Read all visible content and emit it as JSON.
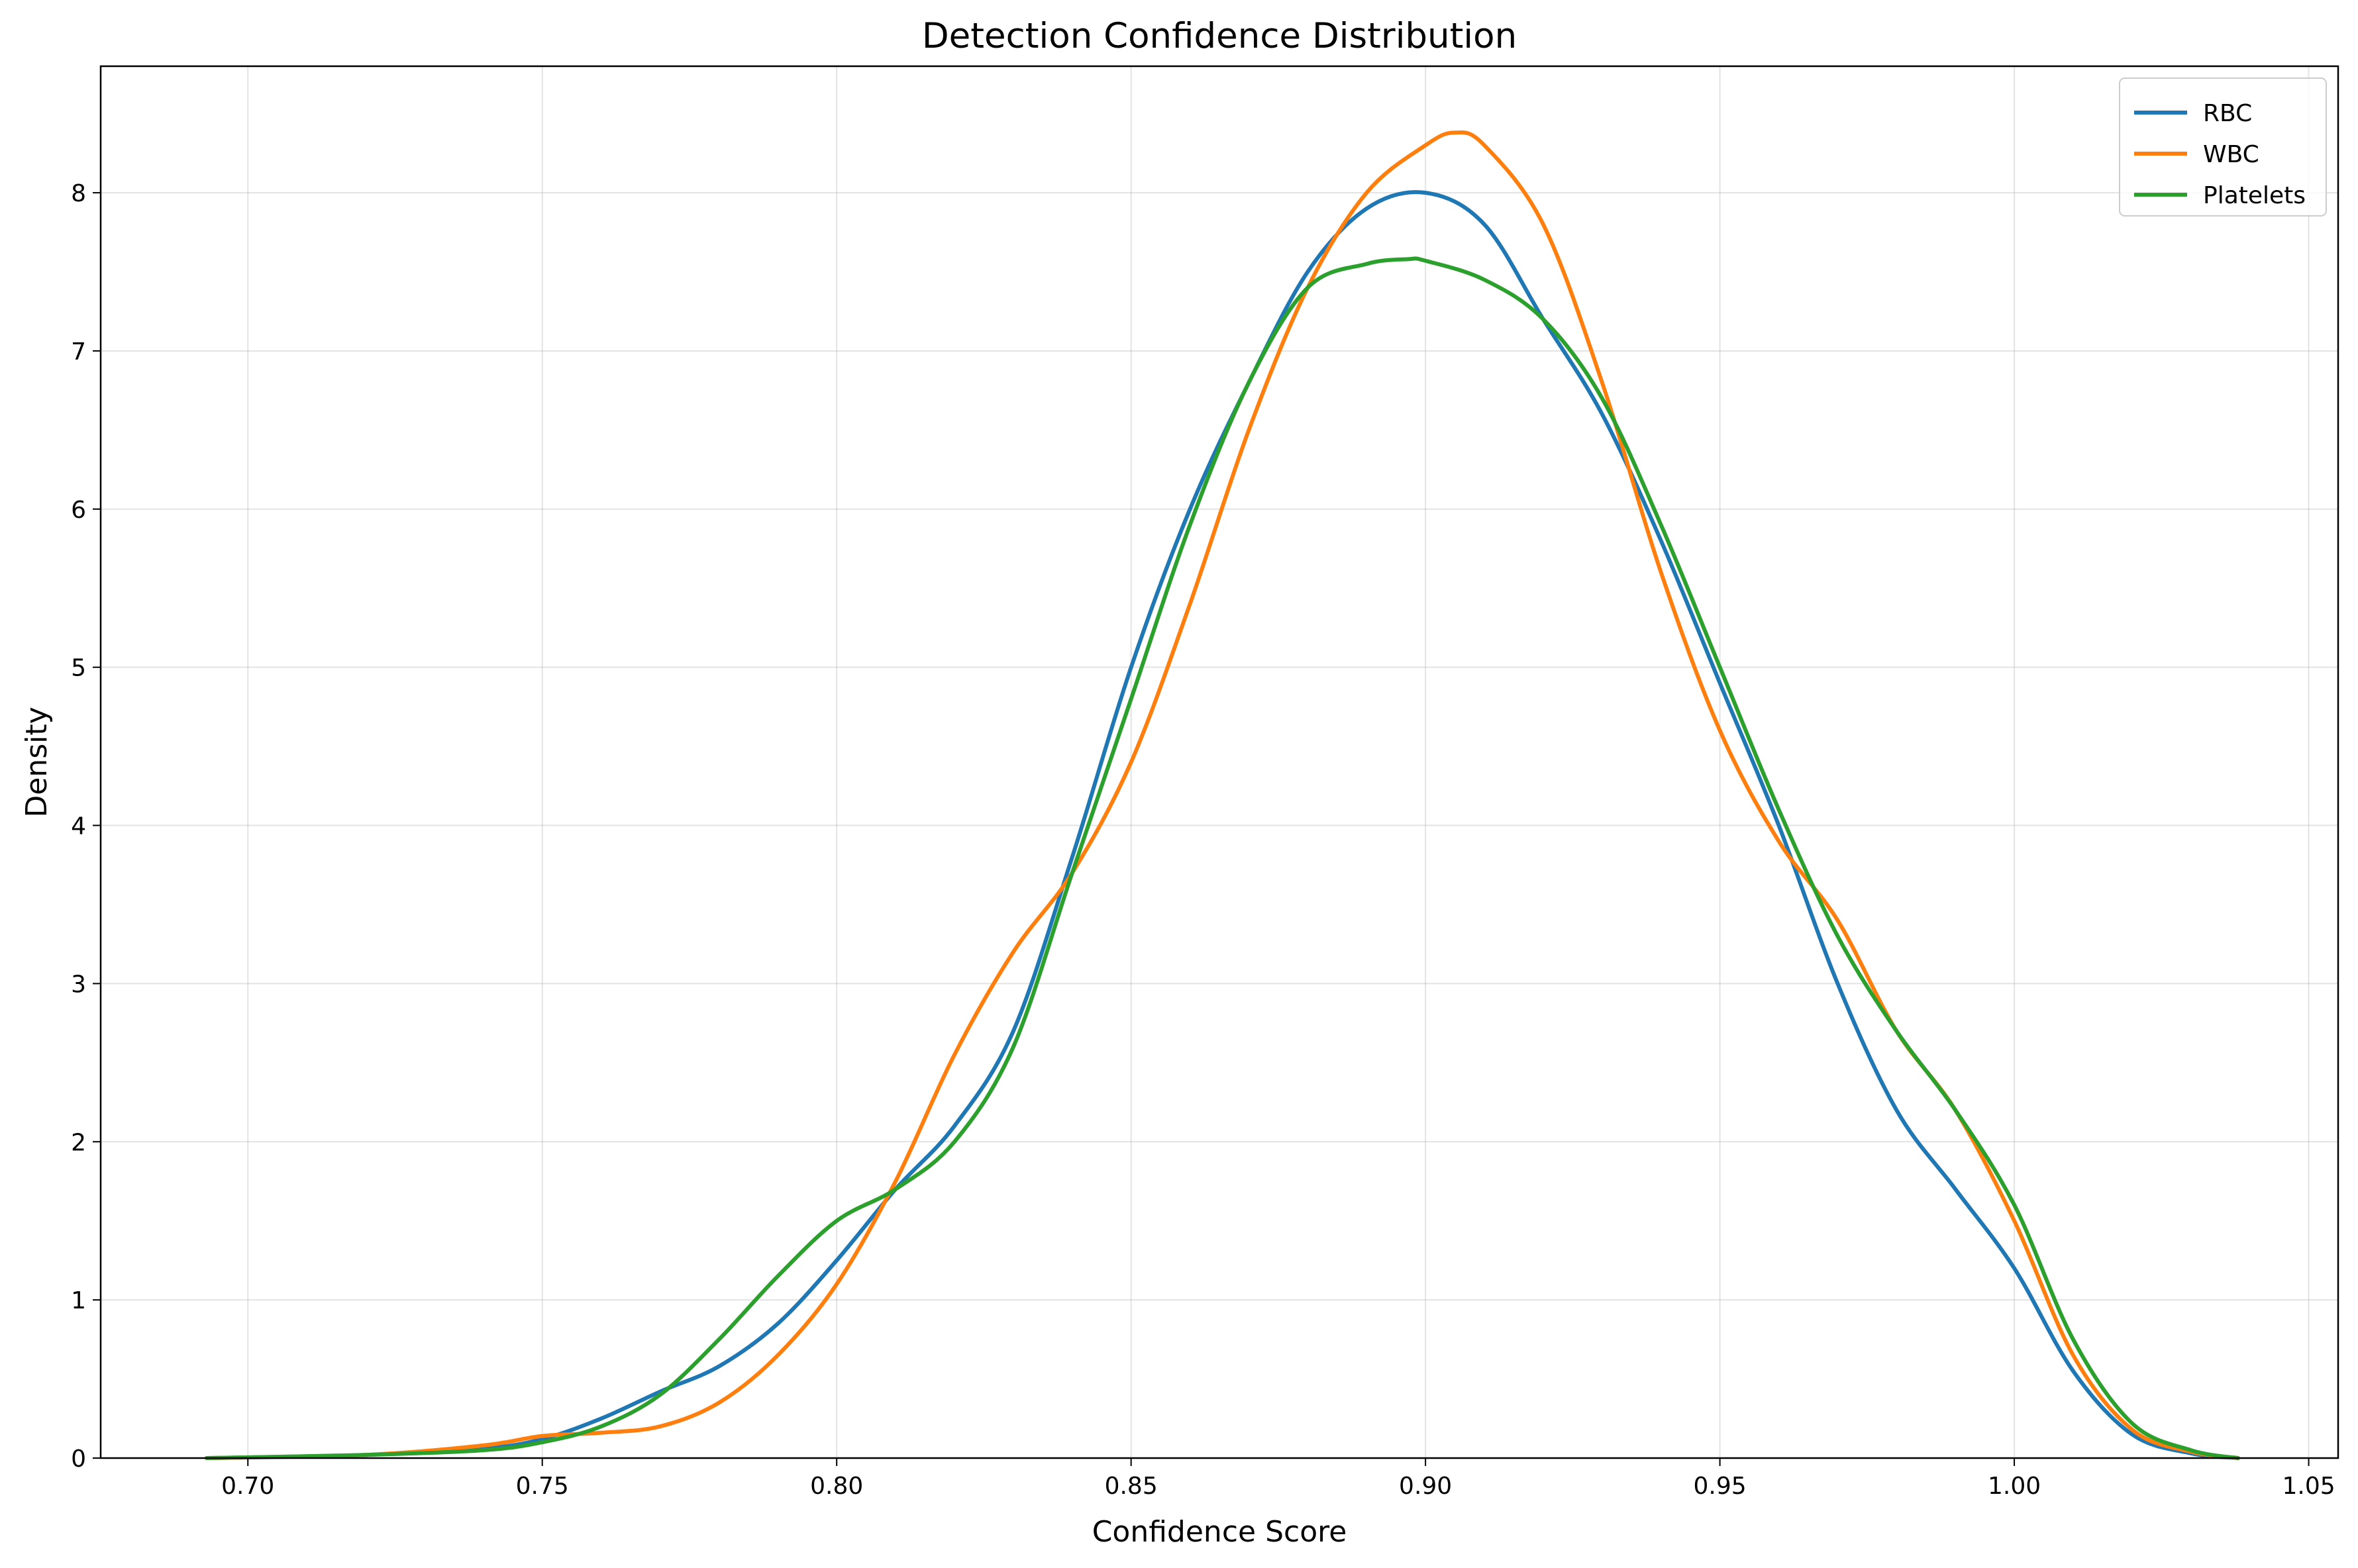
{
  "chart_data": {
    "type": "line",
    "title": "Detection Confidence Distribution",
    "xlabel": "Confidence Score",
    "ylabel": "Density",
    "xlim": [
      0.675,
      1.055
    ],
    "ylim": [
      0,
      8.8
    ],
    "xticks": [
      0.7,
      0.75,
      0.8,
      0.85,
      0.9,
      0.95,
      1.0,
      1.05
    ],
    "xtick_labels": [
      "0.70",
      "0.75",
      "0.80",
      "0.85",
      "0.90",
      "0.95",
      "1.00",
      "1.05"
    ],
    "yticks": [
      0,
      1,
      2,
      3,
      4,
      5,
      6,
      7,
      8
    ],
    "ytick_labels": [
      "0",
      "1",
      "2",
      "3",
      "4",
      "5",
      "6",
      "7",
      "8"
    ],
    "grid": true,
    "legend_position": "top-right",
    "series": [
      {
        "name": "RBC",
        "color": "#1f77b4",
        "points": [
          [
            0.693,
            0.0
          ],
          [
            0.72,
            0.02
          ],
          [
            0.74,
            0.06
          ],
          [
            0.75,
            0.12
          ],
          [
            0.76,
            0.25
          ],
          [
            0.77,
            0.42
          ],
          [
            0.78,
            0.58
          ],
          [
            0.79,
            0.85
          ],
          [
            0.8,
            1.25
          ],
          [
            0.81,
            1.7
          ],
          [
            0.82,
            2.1
          ],
          [
            0.83,
            2.7
          ],
          [
            0.84,
            3.8
          ],
          [
            0.85,
            5.0
          ],
          [
            0.86,
            6.0
          ],
          [
            0.87,
            6.8
          ],
          [
            0.88,
            7.5
          ],
          [
            0.89,
            7.9
          ],
          [
            0.9,
            8.0
          ],
          [
            0.91,
            7.8
          ],
          [
            0.92,
            7.2
          ],
          [
            0.93,
            6.6
          ],
          [
            0.94,
            5.8
          ],
          [
            0.95,
            4.9
          ],
          [
            0.96,
            4.0
          ],
          [
            0.97,
            3.0
          ],
          [
            0.98,
            2.2
          ],
          [
            0.99,
            1.7
          ],
          [
            1.0,
            1.2
          ],
          [
            1.01,
            0.55
          ],
          [
            1.02,
            0.15
          ],
          [
            1.03,
            0.03
          ],
          [
            1.038,
            0.0
          ]
        ]
      },
      {
        "name": "WBC",
        "color": "#ff7f0e",
        "points": [
          [
            0.693,
            0.0
          ],
          [
            0.72,
            0.02
          ],
          [
            0.74,
            0.08
          ],
          [
            0.75,
            0.14
          ],
          [
            0.76,
            0.16
          ],
          [
            0.77,
            0.2
          ],
          [
            0.78,
            0.35
          ],
          [
            0.79,
            0.65
          ],
          [
            0.8,
            1.1
          ],
          [
            0.81,
            1.75
          ],
          [
            0.82,
            2.55
          ],
          [
            0.83,
            3.2
          ],
          [
            0.84,
            3.7
          ],
          [
            0.85,
            4.4
          ],
          [
            0.86,
            5.4
          ],
          [
            0.87,
            6.5
          ],
          [
            0.88,
            7.4
          ],
          [
            0.89,
            8.0
          ],
          [
            0.9,
            8.3
          ],
          [
            0.905,
            8.38
          ],
          [
            0.91,
            8.3
          ],
          [
            0.92,
            7.8
          ],
          [
            0.93,
            6.8
          ],
          [
            0.94,
            5.6
          ],
          [
            0.95,
            4.6
          ],
          [
            0.96,
            3.9
          ],
          [
            0.97,
            3.4
          ],
          [
            0.98,
            2.7
          ],
          [
            0.99,
            2.2
          ],
          [
            1.0,
            1.5
          ],
          [
            1.01,
            0.65
          ],
          [
            1.02,
            0.18
          ],
          [
            1.03,
            0.04
          ],
          [
            1.038,
            0.0
          ]
        ]
      },
      {
        "name": "Platelets",
        "color": "#2ca02c",
        "points": [
          [
            0.693,
            0.0
          ],
          [
            0.72,
            0.02
          ],
          [
            0.74,
            0.05
          ],
          [
            0.75,
            0.1
          ],
          [
            0.76,
            0.2
          ],
          [
            0.77,
            0.4
          ],
          [
            0.78,
            0.75
          ],
          [
            0.79,
            1.15
          ],
          [
            0.8,
            1.5
          ],
          [
            0.81,
            1.7
          ],
          [
            0.82,
            2.0
          ],
          [
            0.83,
            2.6
          ],
          [
            0.84,
            3.7
          ],
          [
            0.85,
            4.8
          ],
          [
            0.86,
            5.9
          ],
          [
            0.87,
            6.8
          ],
          [
            0.88,
            7.4
          ],
          [
            0.89,
            7.55
          ],
          [
            0.897,
            7.58
          ],
          [
            0.9,
            7.57
          ],
          [
            0.91,
            7.45
          ],
          [
            0.92,
            7.2
          ],
          [
            0.93,
            6.7
          ],
          [
            0.94,
            5.9
          ],
          [
            0.95,
            5.0
          ],
          [
            0.96,
            4.1
          ],
          [
            0.97,
            3.3
          ],
          [
            0.98,
            2.7
          ],
          [
            0.99,
            2.2
          ],
          [
            1.0,
            1.6
          ],
          [
            1.01,
            0.75
          ],
          [
            1.02,
            0.22
          ],
          [
            1.03,
            0.05
          ],
          [
            1.038,
            0.0
          ]
        ]
      }
    ]
  }
}
